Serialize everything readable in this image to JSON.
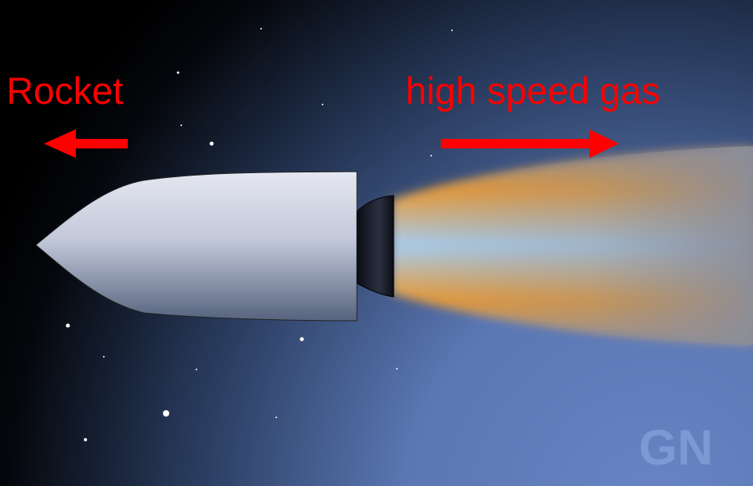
{
  "labels": {
    "rocket": "Rocket",
    "gas": "high speed gas",
    "watermark": "GN"
  }
}
